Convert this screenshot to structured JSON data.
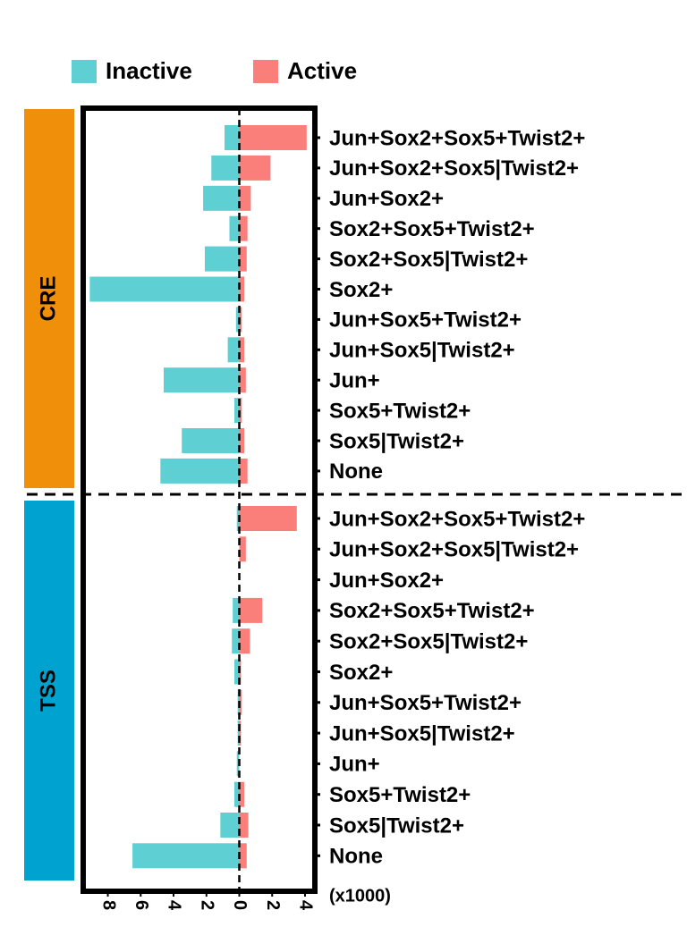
{
  "chart_data": {
    "type": "bar",
    "orientation": "horizontal",
    "x_unit_label": "(x1000)",
    "xlim": [
      -9.5,
      4.6
    ],
    "xticks": [
      {
        "value": -8,
        "label": "8"
      },
      {
        "value": -6,
        "label": "6"
      },
      {
        "value": -4,
        "label": "4"
      },
      {
        "value": -2,
        "label": "2"
      },
      0,
      2,
      4
    ],
    "groups": [
      {
        "label": "CRE",
        "color": "#f0900a",
        "categories": [
          "Jun+Sox2+Sox5+Twist2+",
          "Jun+Sox2+Sox5|Twist2+",
          "Jun+Sox2+",
          "Sox2+Sox5+Twist2+",
          "Sox2+Sox5|Twist2+",
          "Sox2+",
          "Jun+Sox5+Twist2+",
          "Jun+Sox5|Twist2+",
          "Jun+",
          "Sox5+Twist2+",
          "Sox5|Twist2+",
          "None"
        ]
      },
      {
        "label": "TSS",
        "color": "#00a2cf",
        "categories": [
          "Jun+Sox2+Sox5+Twist2+",
          "Jun+Sox2+Sox5|Twist2+",
          "Jun+Sox2+",
          "Sox2+Sox5+Twist2+",
          "Sox2+Sox5|Twist2+",
          "Sox2+",
          "Jun+Sox5+Twist2+",
          "Jun+Sox5|Twist2+",
          "Jun+",
          "Sox5+Twist2+",
          "Sox5|Twist2+",
          "None"
        ]
      }
    ],
    "series": [
      {
        "name": "Inactive",
        "color": "#5ecfd3",
        "values": [
          [
            -0.9,
            -1.7,
            -2.2,
            -0.6,
            -2.1,
            -9.1,
            -0.2,
            -0.7,
            -4.6,
            -0.3,
            -3.5,
            -4.8
          ],
          [
            -0.15,
            0,
            0,
            -0.4,
            -0.45,
            -0.3,
            -0.1,
            -0.1,
            -0.15,
            -0.3,
            -1.15,
            -6.5
          ]
        ]
      },
      {
        "name": "Active",
        "color": "#fa7f7a",
        "values": [
          [
            4.1,
            1.9,
            0.7,
            0.5,
            0.45,
            0.3,
            0.15,
            0.3,
            0.4,
            0.15,
            0.3,
            0.5
          ],
          [
            3.5,
            0.4,
            0,
            1.4,
            0.65,
            0.1,
            0.15,
            0.1,
            0,
            0.3,
            0.55,
            0.45
          ]
        ]
      }
    ]
  }
}
